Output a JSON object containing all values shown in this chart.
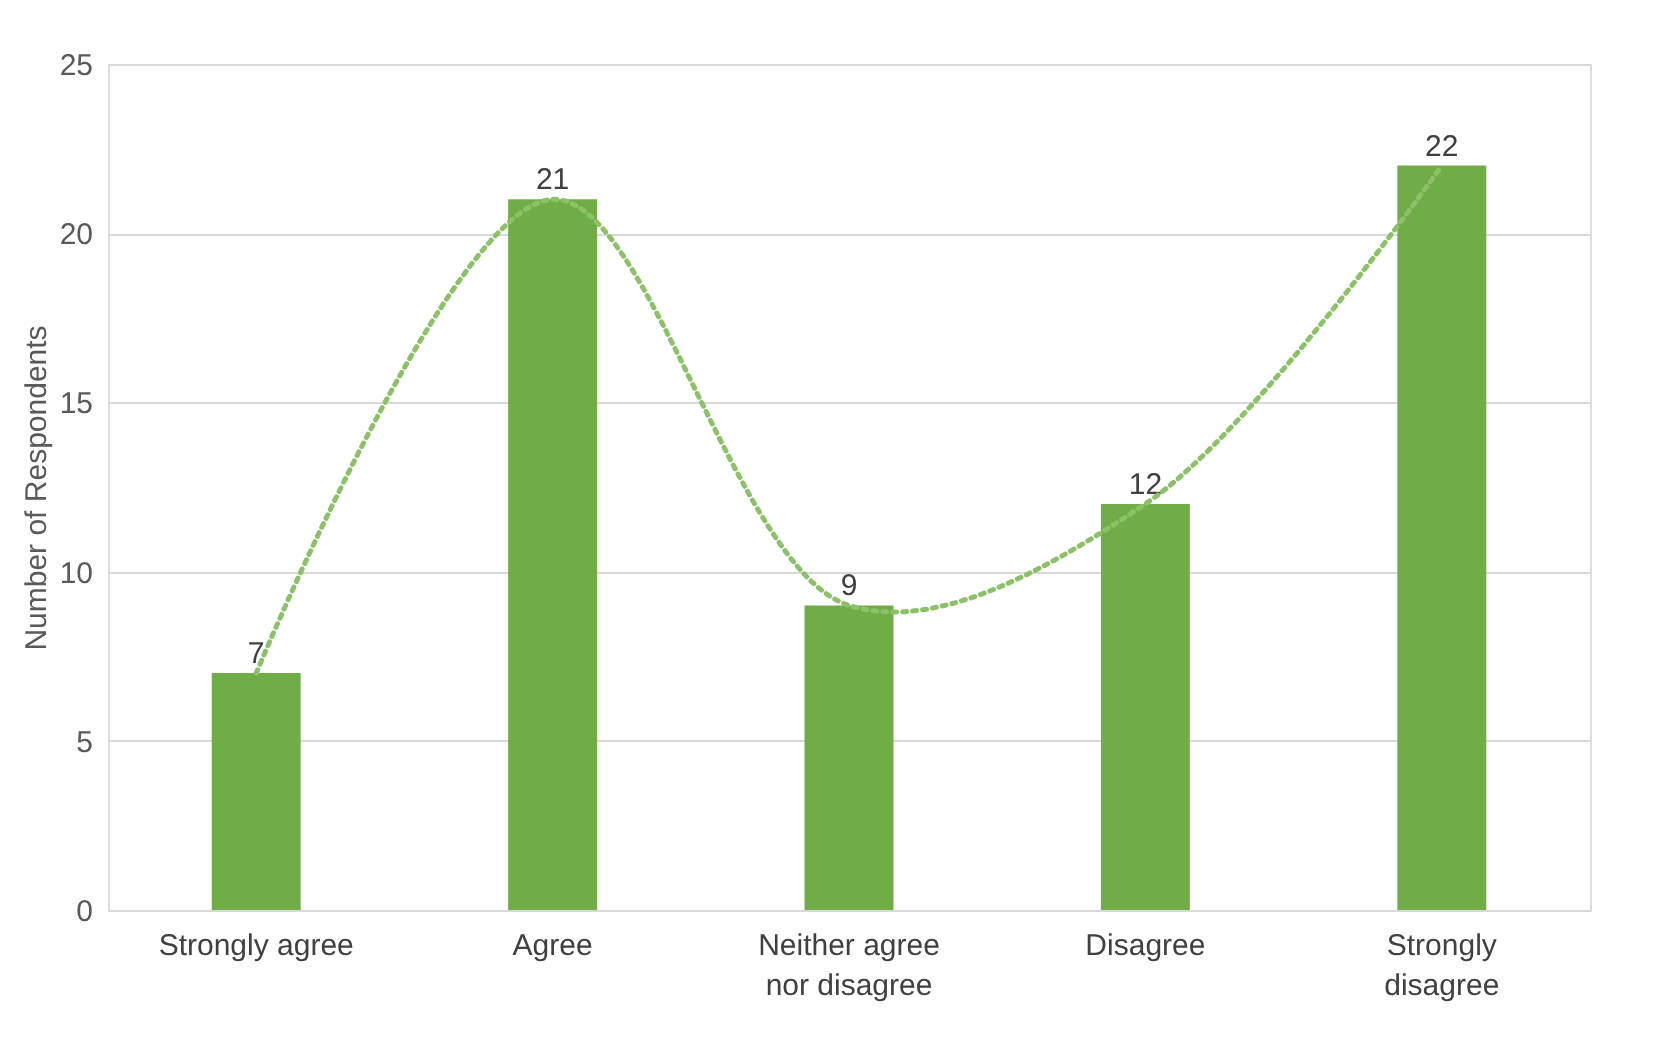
{
  "chart_data": {
    "type": "bar",
    "ylabel": "Number of Respondents",
    "categories": [
      "Strongly agree",
      "Agree",
      "Neither agree nor disagree",
      "Disagree",
      "Strongly disagree"
    ],
    "series": [
      {
        "color": "#70ad47",
        "values": [
          7,
          21,
          9,
          12,
          22
        ]
      },
      {
        "type": "line",
        "color": "#8cc168",
        "line_style": "dotted",
        "marker": "none",
        "values": [
          7,
          21,
          9,
          12,
          22
        ],
        "value_labels": [
          null,
          null,
          null,
          null,
          null
        ]
      }
    ],
    "data_labels": true,
    "ylim": [
      0,
      25
    ],
    "yticks": [
      0,
      5,
      10,
      15,
      20,
      25
    ],
    "grid": "y"
  }
}
